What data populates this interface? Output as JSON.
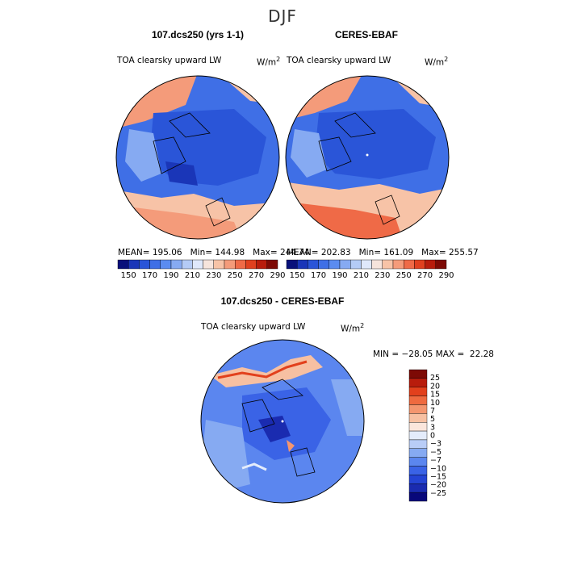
{
  "page": {
    "title": "DJF",
    "colors": {
      "abs_scale": [
        "#08107a",
        "#1a36b8",
        "#2a55d8",
        "#3f6fe6",
        "#5b8cf0",
        "#86aaf2",
        "#b4cbf6",
        "#dfe8fb",
        "#f6e4dc",
        "#f7c3a7",
        "#f49b7a",
        "#ef6a47",
        "#e0401f",
        "#b81c0c",
        "#7d0a05"
      ],
      "diff_scale": [
        "#08087a",
        "#1a2bb0",
        "#2444d4",
        "#3a63e6",
        "#5b86ef",
        "#86aaf2",
        "#b9cdf7",
        "#e4ecfb",
        "#fbe6dc",
        "#f7c0a2",
        "#f4966f",
        "#ef6a3f",
        "#e2401c",
        "#b81c0c",
        "#7d0a05"
      ]
    }
  },
  "panels": [
    {
      "title": "107.dcs250 (yrs 1-1)",
      "variable": "TOA clearsky upward LW",
      "units": "W/m",
      "units_sup": "2",
      "stats_text": "MEAN= 195.06   Min= 144.98   Max= 244.74"
    },
    {
      "title": "CERES-EBAF",
      "variable": "TOA clearsky upward LW",
      "units": "W/m",
      "units_sup": "2",
      "stats_text": "MEAN= 202.83   Min= 161.09   Max= 255.57"
    },
    {
      "title": "107.dcs250 - CERES-EBAF",
      "variable": "TOA clearsky upward LW",
      "units": "W/m",
      "units_sup": "2",
      "stats_text": "MIN = −28.05 MAX =  22.28"
    }
  ],
  "chart_data": [
    {
      "type": "heatmap",
      "title": "107.dcs250 (yrs 1-1)",
      "subtitle": "TOA clearsky upward LW",
      "units": "W/m2",
      "projection": "north-polar-stereographic",
      "stats": {
        "mean": 195.06,
        "min": 144.98,
        "max": 244.74
      },
      "colorbar_ticks": [
        "150",
        "170",
        "190",
        "210",
        "230",
        "250",
        "270",
        "290"
      ],
      "colorbar_range": [
        150,
        290
      ]
    },
    {
      "type": "heatmap",
      "title": "CERES-EBAF",
      "subtitle": "TOA clearsky upward LW",
      "units": "W/m2",
      "projection": "north-polar-stereographic",
      "stats": {
        "mean": 202.83,
        "min": 161.09,
        "max": 255.57
      },
      "colorbar_ticks": [
        "150",
        "170",
        "190",
        "210",
        "230",
        "250",
        "270",
        "290"
      ],
      "colorbar_range": [
        150,
        290
      ]
    },
    {
      "type": "heatmap",
      "title": "107.dcs250 - CERES-EBAF",
      "subtitle": "TOA clearsky upward LW",
      "units": "W/m2",
      "projection": "north-polar-stereographic",
      "stats": {
        "min": -28.05,
        "max": 22.28
      },
      "colorbar_ticks": [
        "25",
        "20",
        "15",
        "10",
        "7",
        "5",
        "3",
        "0",
        "−3",
        "−5",
        "−7",
        "−10",
        "−15",
        "−20",
        "−25"
      ],
      "colorbar_range": [
        -25,
        25
      ]
    }
  ]
}
